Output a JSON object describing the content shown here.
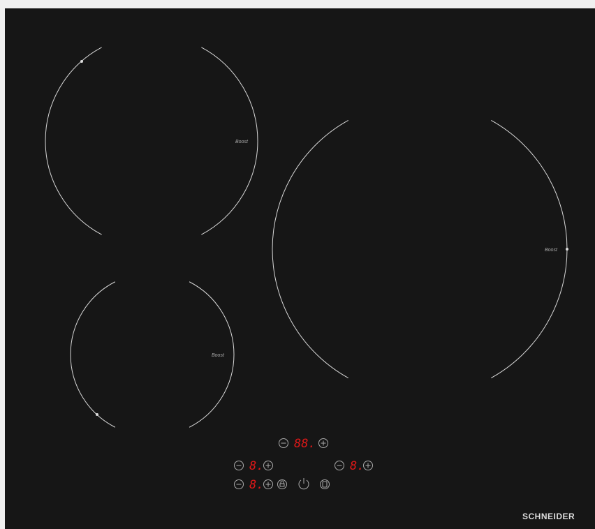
{
  "zones": [
    {
      "label": "Boost"
    },
    {
      "label": "Boost"
    },
    {
      "label": "Boost"
    }
  ],
  "controls": {
    "timer_display": "88.",
    "zone_displays": [
      "8.",
      "8.",
      "8."
    ]
  },
  "brand": "SCHNEIDER"
}
